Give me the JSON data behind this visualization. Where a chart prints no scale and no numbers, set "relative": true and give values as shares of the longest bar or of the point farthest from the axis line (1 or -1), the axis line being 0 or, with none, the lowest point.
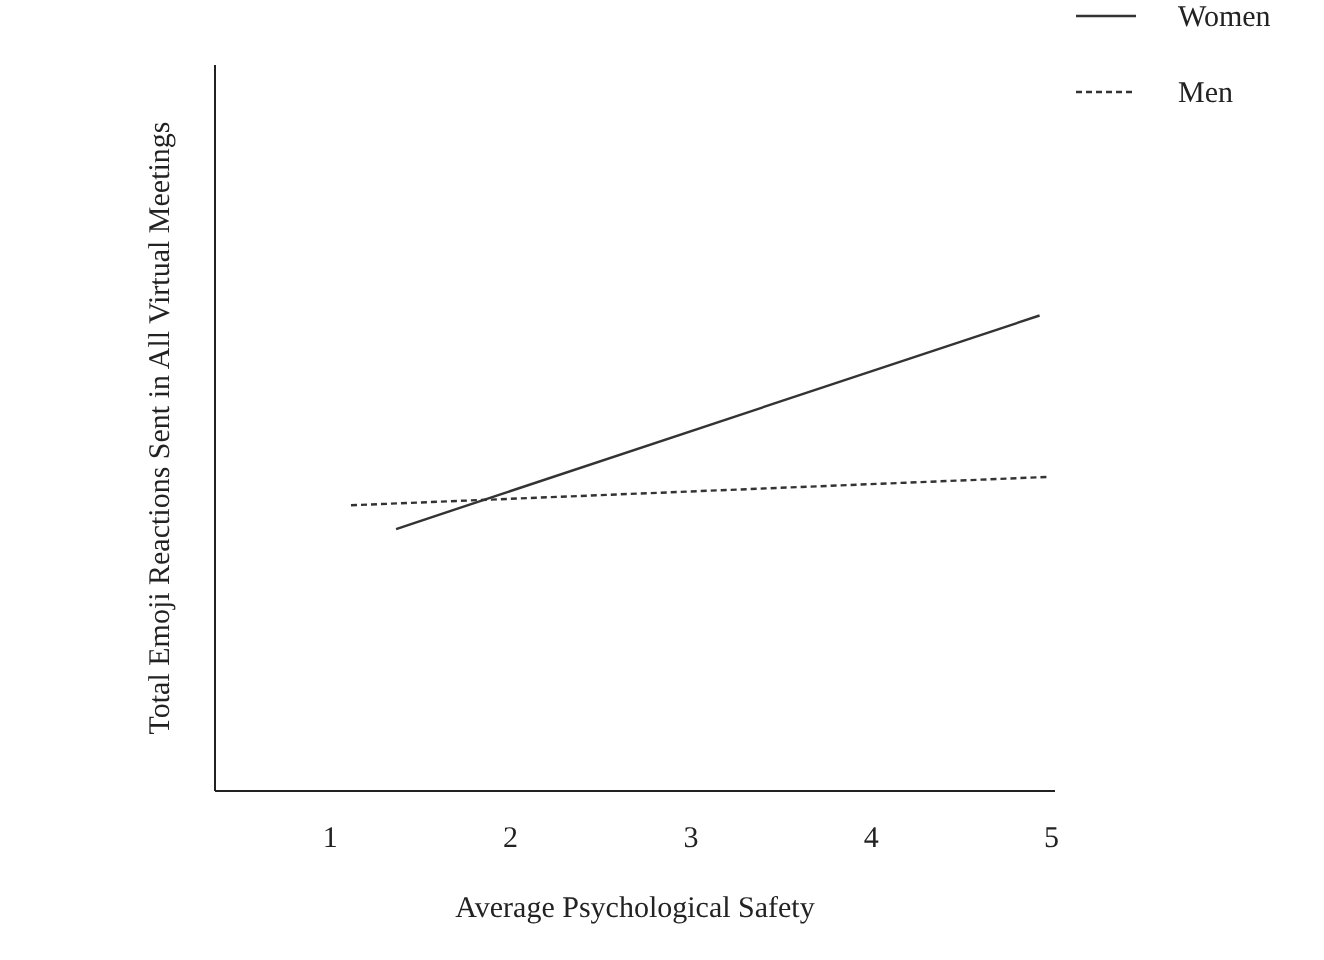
{
  "chart_data": {
    "type": "line",
    "relative": true,
    "xlabel": "Average Psychological Safety",
    "ylabel": "Total Emoji Reactions Sent in All Virtual Meetings",
    "xlim": [
      0.36,
      5.02
    ],
    "xticks": [
      1,
      2,
      3,
      4,
      5
    ],
    "grid": false,
    "legend": "top right",
    "marker": "none",
    "series": [
      {
        "name": "Women",
        "color": "#333333",
        "line_style": "solid",
        "x": [
          1.37,
          4.94
        ],
        "values": [
          0.55,
          1
        ]
      },
      {
        "name": "Men",
        "color": "#333333",
        "line_style": "dashed",
        "x": [
          1.12,
          5.0
        ],
        "values": [
          0.6,
          0.66
        ]
      }
    ]
  }
}
